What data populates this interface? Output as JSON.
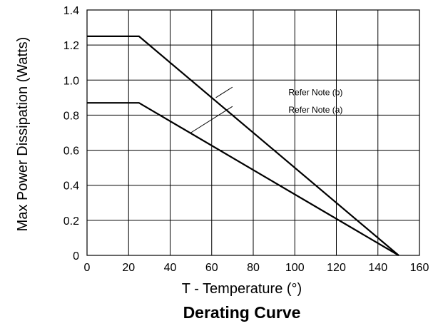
{
  "chart_data": {
    "type": "line",
    "title": "Derating Curve",
    "xlabel": "T - Temperature (°)",
    "ylabel": "Max Power Dissipation (Watts)",
    "xlim": [
      0,
      160
    ],
    "ylim": [
      0,
      1.4
    ],
    "x_ticks": [
      0,
      20,
      40,
      60,
      80,
      100,
      120,
      140,
      160
    ],
    "y_ticks": [
      0,
      0.2,
      0.4,
      0.6,
      0.8,
      1.0,
      1.2,
      1.4
    ],
    "x_tick_labels": [
      "0",
      "20",
      "40",
      "60",
      "80",
      "100",
      "120",
      "140",
      "160"
    ],
    "y_tick_labels": [
      "0",
      "0.2",
      "0.4",
      "0.6",
      "0.8",
      "1.0",
      "1.2",
      "1.4"
    ],
    "grid": true,
    "series": [
      {
        "points": [
          [
            0,
            1.25
          ],
          [
            25,
            1.25
          ],
          [
            150,
            0
          ]
        ]
      },
      {
        "points": [
          [
            0,
            0.87
          ],
          [
            25,
            0.87
          ],
          [
            150,
            0
          ]
        ]
      }
    ],
    "annotations": [
      {
        "text": "Refer Note (b)",
        "leader_from": [
          62,
          0.9
        ],
        "leader_to": [
          70,
          0.96
        ],
        "label_at": [
          110,
          0.93
        ]
      },
      {
        "text": "Refer Note (a)",
        "leader_from": [
          50,
          0.7
        ],
        "leader_to": [
          70,
          0.85
        ],
        "label_at": [
          110,
          0.83
        ]
      }
    ]
  }
}
